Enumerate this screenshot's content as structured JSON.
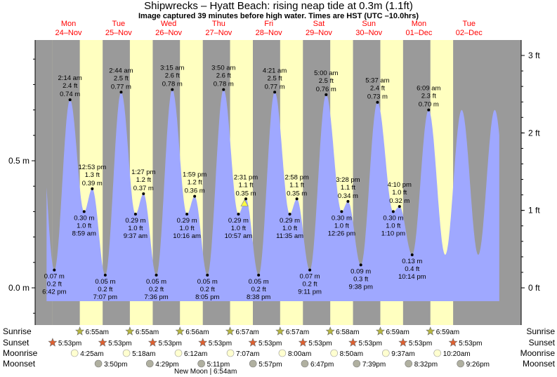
{
  "header": {
    "title": "Shipwrecks – Hyatt Beach: rising  neap tide at 0.3m (1.1ft)",
    "subtitle": "Image captured 39 minutes before high water. Times are HST (UTC –10.0hrs)"
  },
  "colors": {
    "tide_fill": "#9fa8ff",
    "night": "#9a9a9a",
    "day": "#ffffc0",
    "day_label": "#ff0000",
    "sun_icon": "#b8b840",
    "sunset_icon": "#e06030",
    "moonrise_icon": "#ffffd0",
    "moonset_icon": "#b0b0a0"
  },
  "chart_data": {
    "type": "area",
    "title": "Shipwrecks – Hyatt Beach: rising  neap tide at 0.3m (1.1ft)",
    "y_left_unit": "m",
    "y_right_unit": "ft",
    "y_left_ticks": [
      {
        "v": 0.0,
        "label": "0.0 m"
      },
      {
        "v": 0.5,
        "label": "0.5 m"
      }
    ],
    "y_right_ticks": [
      {
        "v": 0,
        "label": "0 ft"
      },
      {
        "v": 1,
        "label": "1 ft"
      },
      {
        "v": 2,
        "label": "2 ft"
      },
      {
        "v": 3,
        "label": "3 ft"
      }
    ],
    "ylim_m": [
      -0.12,
      0.97
    ],
    "x_start_hour": -14.5,
    "x_end_hour": 218.5,
    "data_start_hour": -9,
    "data_end_hour": 208,
    "days": [
      {
        "day": "Mon",
        "date": "24–Nov"
      },
      {
        "day": "Tue",
        "date": "25–Nov"
      },
      {
        "day": "Wed",
        "date": "26–Nov"
      },
      {
        "day": "Thu",
        "date": "27–Nov"
      },
      {
        "day": "Fri",
        "date": "28–Nov"
      },
      {
        "day": "Sat",
        "date": "29–Nov"
      },
      {
        "day": "Sun",
        "date": "30–Nov"
      },
      {
        "day": "Mon",
        "date": "01–Dec"
      },
      {
        "day": "Tue",
        "date": "02–Dec"
      }
    ],
    "extremes": [
      {
        "t": -5.3,
        "m": "0.07 m",
        "ft": "0.2 ft",
        "time": "6:42 pm",
        "value": 0.07,
        "label_pos": "below"
      },
      {
        "t": 2.23,
        "m": "0.74 m",
        "ft": "2.4 ft",
        "time": "2:14 am",
        "value": 0.74,
        "label_pos": "above"
      },
      {
        "t": 8.98,
        "m": "0.30 m",
        "ft": "1.0 ft",
        "time": "8:59 am",
        "value": 0.3,
        "label_pos": "below"
      },
      {
        "t": 12.88,
        "m": "0.39 m",
        "ft": "1.3 ft",
        "time": "12:53 pm",
        "value": 0.39,
        "label_pos": "above"
      },
      {
        "t": 19.12,
        "m": "0.05 m",
        "ft": "0.2 ft",
        "time": "7:07 pm",
        "value": 0.05,
        "label_pos": "below"
      },
      {
        "t": 26.73,
        "m": "0.77 m",
        "ft": "2.5 ft",
        "time": "2:44 am",
        "value": 0.77,
        "label_pos": "above"
      },
      {
        "t": 33.62,
        "m": "0.29 m",
        "ft": "1.0 ft",
        "time": "9:37 am",
        "value": 0.29,
        "label_pos": "below"
      },
      {
        "t": 37.45,
        "m": "0.37 m",
        "ft": "1.2 ft",
        "time": "1:27 pm",
        "value": 0.37,
        "label_pos": "above"
      },
      {
        "t": 43.6,
        "m": "0.05 m",
        "ft": "0.2 ft",
        "time": "7:36 pm",
        "value": 0.05,
        "label_pos": "below"
      },
      {
        "t": 51.25,
        "m": "0.78 m",
        "ft": "2.6 ft",
        "time": "3:15 am",
        "value": 0.78,
        "label_pos": "above"
      },
      {
        "t": 58.27,
        "m": "0.29 m",
        "ft": "1.0 ft",
        "time": "10:16 am",
        "value": 0.29,
        "label_pos": "below"
      },
      {
        "t": 61.98,
        "m": "0.36 m",
        "ft": "1.2 ft",
        "time": "1:59 pm",
        "value": 0.36,
        "label_pos": "above"
      },
      {
        "t": 68.08,
        "m": "0.05 m",
        "ft": "0.2 ft",
        "time": "8:05 pm",
        "value": 0.05,
        "label_pos": "below"
      },
      {
        "t": 75.83,
        "m": "0.78 m",
        "ft": "2.6 ft",
        "time": "3:50 am",
        "value": 0.78,
        "label_pos": "above"
      },
      {
        "t": 82.95,
        "m": "0.29 m",
        "ft": "1.0 ft",
        "time": "10:57 am",
        "value": 0.29,
        "label_pos": "below"
      },
      {
        "t": 86.52,
        "m": "0.35 m",
        "ft": "1.1 ft",
        "time": "2:31 pm",
        "value": 0.35,
        "label_pos": "above"
      },
      {
        "t": 92.63,
        "m": "0.05 m",
        "ft": "0.2 ft",
        "time": "8:38 pm",
        "value": 0.05,
        "label_pos": "below"
      },
      {
        "t": 100.35,
        "m": "0.77 m",
        "ft": "2.5 ft",
        "time": "4:21 am",
        "value": 0.77,
        "label_pos": "above"
      },
      {
        "t": 107.58,
        "m": "0.29 m",
        "ft": "1.0 ft",
        "time": "11:35 am",
        "value": 0.29,
        "label_pos": "below"
      },
      {
        "t": 110.97,
        "m": "0.35 m",
        "ft": "1.1 ft",
        "time": "2:58 pm",
        "value": 0.35,
        "label_pos": "above"
      },
      {
        "t": 117.18,
        "m": "0.07 m",
        "ft": "0.2 ft",
        "time": "9:11 pm",
        "value": 0.07,
        "label_pos": "below"
      },
      {
        "t": 125.0,
        "m": "0.76 m",
        "ft": "2.5 ft",
        "time": "5:00 am",
        "value": 0.76,
        "label_pos": "above"
      },
      {
        "t": 132.43,
        "m": "0.30 m",
        "ft": "1.0 ft",
        "time": "12:26 pm",
        "value": 0.3,
        "label_pos": "below"
      },
      {
        "t": 135.47,
        "m": "0.34 m",
        "ft": "1.1 ft",
        "time": "3:28 pm",
        "value": 0.34,
        "label_pos": "above"
      },
      {
        "t": 141.63,
        "m": "0.09 m",
        "ft": "0.3 ft",
        "time": "9:38 pm",
        "value": 0.09,
        "label_pos": "below"
      },
      {
        "t": 149.62,
        "m": "0.73 m",
        "ft": "2.4 ft",
        "time": "5:37 am",
        "value": 0.73,
        "label_pos": "above"
      },
      {
        "t": 157.17,
        "m": "0.30 m",
        "ft": "1.0 ft",
        "time": "1:10 pm",
        "value": 0.3,
        "label_pos": "below"
      },
      {
        "t": 160.17,
        "m": "0.32 m",
        "ft": "1.0 ft",
        "time": "4:10 pm",
        "value": 0.32,
        "label_pos": "above"
      },
      {
        "t": 166.23,
        "m": "0.13 m",
        "ft": "0.4 ft",
        "time": "10:14 pm",
        "value": 0.13,
        "label_pos": "below"
      },
      {
        "t": 174.15,
        "m": "0.70 m",
        "ft": "2.3 ft",
        "time": "6:09 am",
        "value": 0.7,
        "label_pos": "above"
      }
    ],
    "current": {
      "t": 85.87,
      "value": 0.33
    },
    "legend_rows": [
      "Sunrise",
      "Sunset",
      "Moonrise",
      "Moonset"
    ],
    "sunrise": [
      {
        "t": 6.92,
        "label": "6:55am"
      },
      {
        "t": 30.92,
        "label": "6:55am"
      },
      {
        "t": 54.93,
        "label": "6:56am"
      },
      {
        "t": 78.95,
        "label": "6:57am"
      },
      {
        "t": 102.95,
        "label": "6:57am"
      },
      {
        "t": 126.97,
        "label": "6:58am"
      },
      {
        "t": 150.98,
        "label": "6:59am"
      },
      {
        "t": 174.98,
        "label": "6:59am"
      }
    ],
    "sunset": [
      {
        "t": -6.12,
        "label": "5:53pm"
      },
      {
        "t": 17.88,
        "label": "5:53pm"
      },
      {
        "t": 41.88,
        "label": "5:53pm"
      },
      {
        "t": 65.88,
        "label": "5:53pm"
      },
      {
        "t": 89.88,
        "label": "5:53pm"
      },
      {
        "t": 113.88,
        "label": "5:53pm"
      },
      {
        "t": 137.88,
        "label": "5:53pm"
      },
      {
        "t": 161.88,
        "label": "5:53pm"
      },
      {
        "t": 185.88,
        "label": "5:53pm"
      }
    ],
    "moonrise": [
      {
        "t": 4.42,
        "label": "4:25am"
      },
      {
        "t": 29.3,
        "label": "5:18am"
      },
      {
        "t": 54.2,
        "label": "6:12am"
      },
      {
        "t": 79.12,
        "label": "7:07am"
      },
      {
        "t": 104.0,
        "label": "8:00am"
      },
      {
        "t": 128.83,
        "label": "8:50am"
      },
      {
        "t": 153.62,
        "label": "9:37am"
      },
      {
        "t": 178.33,
        "label": "10:20am"
      }
    ],
    "moonset": [
      {
        "t": 15.83,
        "label": "3:50pm"
      },
      {
        "t": 40.48,
        "label": "4:29pm"
      },
      {
        "t": 65.18,
        "label": "5:11pm"
      },
      {
        "t": 89.95,
        "label": "5:57pm"
      },
      {
        "t": 114.78,
        "label": "6:47pm"
      },
      {
        "t": 139.65,
        "label": "7:39pm"
      },
      {
        "t": 164.53,
        "label": "8:32pm"
      },
      {
        "t": 189.43,
        "label": "9:26pm"
      }
    ],
    "moon_phase_note": "New Moon | 6:54am"
  }
}
